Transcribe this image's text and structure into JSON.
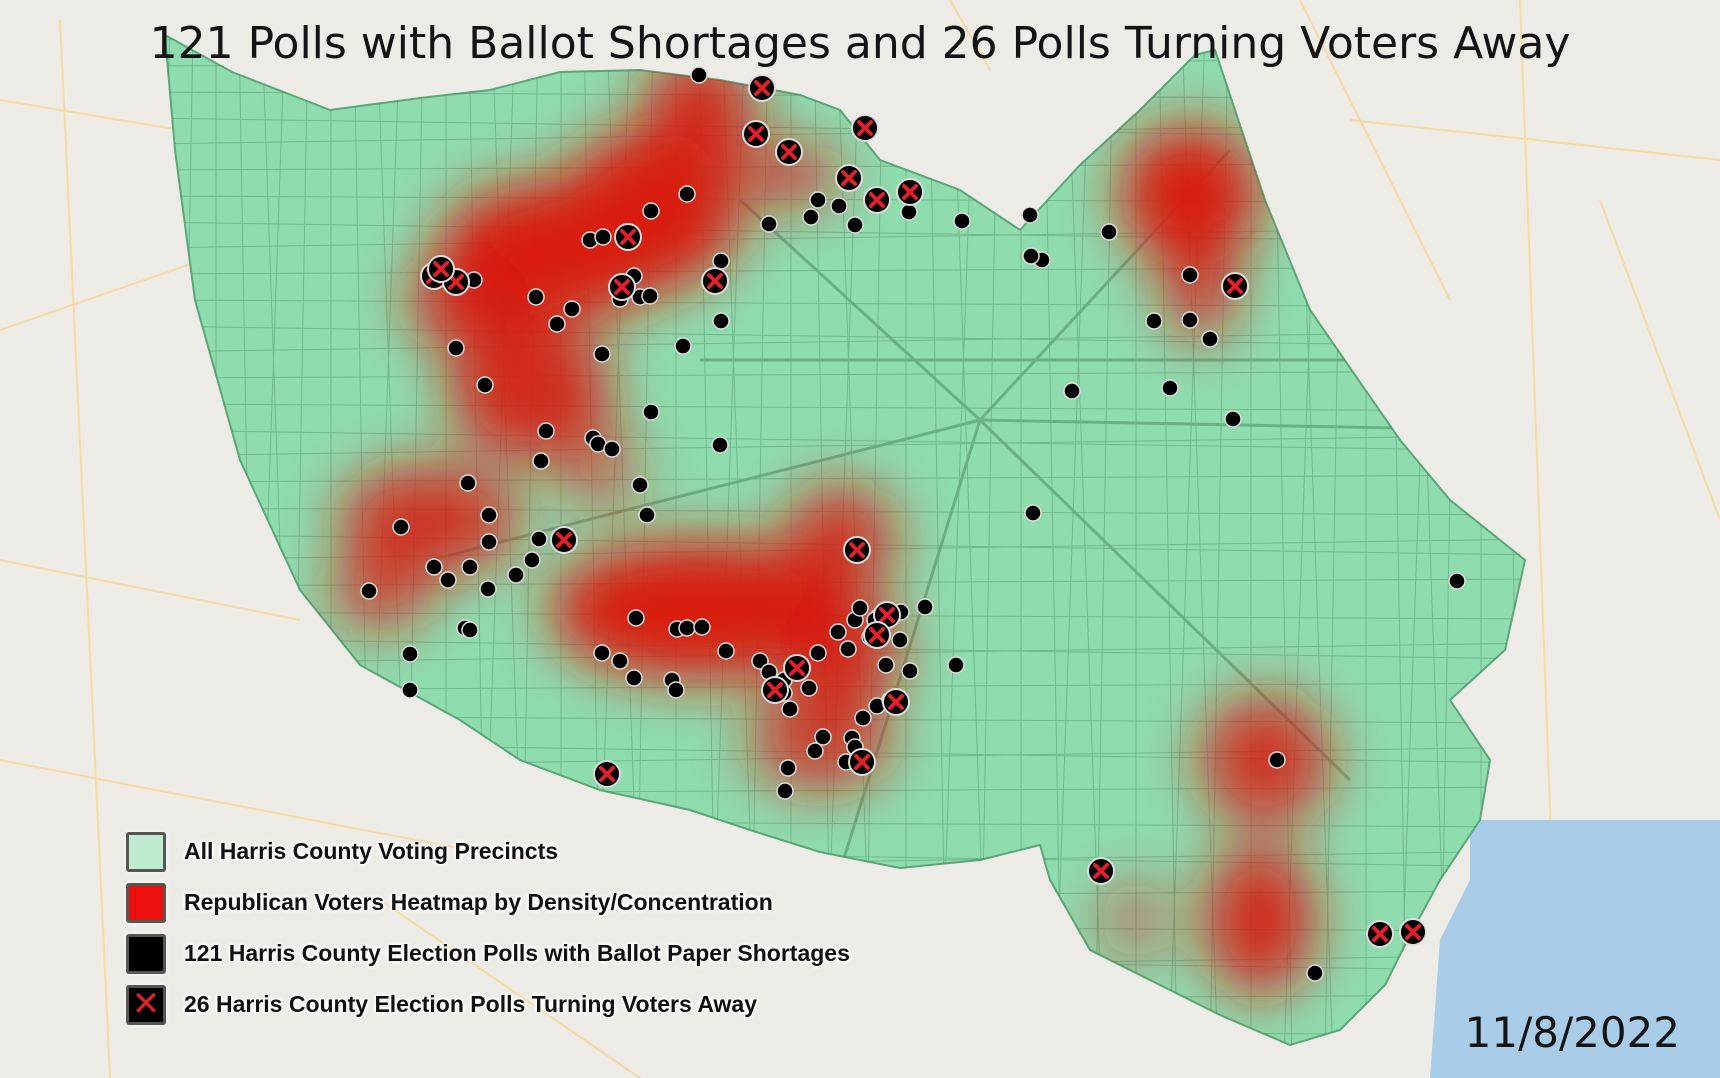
{
  "title": "121 Polls with Ballot Shortages and 26 Polls Turning Voters Away",
  "date": "11/8/2022",
  "colors": {
    "precinct_fill": "#8fdcae",
    "heatmap": "#d81a0e",
    "poll_dot": "#000000",
    "turn_away_x": "#e0202a",
    "background": "#ecebe6"
  },
  "legend": [
    {
      "label": "All Harris County Voting Precincts",
      "swatch": "precinct",
      "color": "#bfeccf"
    },
    {
      "label": "Republican Voters Heatmap by Density/Concentration",
      "swatch": "heatmap",
      "color": "#ee0f0f"
    },
    {
      "label": "121 Harris County Election Polls with Ballot Paper Shortages",
      "swatch": "dot",
      "color": "#000000"
    },
    {
      "label": "26 Harris County Election Polls Turning Voters Away",
      "swatch": "x",
      "color": "#000000"
    }
  ],
  "icons": {
    "poll_marker": "black-circle-icon",
    "turn_away_marker": "red-x-icon"
  }
}
